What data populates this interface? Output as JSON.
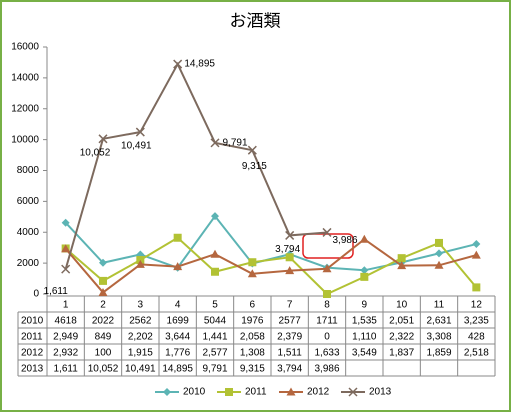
{
  "chart_data": {
    "type": "line",
    "title": "お酒類",
    "categories": [
      "1",
      "2",
      "3",
      "4",
      "5",
      "6",
      "7",
      "8",
      "9",
      "10",
      "11",
      "12"
    ],
    "ylim": [
      0,
      16000
    ],
    "yticks": [
      0,
      2000,
      4000,
      6000,
      8000,
      10000,
      12000,
      14000,
      16000
    ],
    "series": [
      {
        "name": "2010",
        "color": "#5cb4b4",
        "marker": "diamond",
        "values": [
          4618,
          2022,
          2562,
          1699,
          5044,
          1976,
          2577,
          1711,
          1535,
          2051,
          2631,
          3235
        ],
        "value_labels": [
          "4618",
          "2022",
          "2562",
          "1699",
          "5044",
          "1976",
          "2577",
          "1711",
          "1,535",
          "2,051",
          "2,631",
          "3,235"
        ]
      },
      {
        "name": "2011",
        "color": "#b2c234",
        "marker": "square",
        "values": [
          2949,
          849,
          2202,
          3644,
          1441,
          2058,
          2379,
          0,
          1110,
          2322,
          3308,
          428
        ],
        "value_labels": [
          "2,949",
          "849",
          "2,202",
          "3,644",
          "1,441",
          "2,058",
          "2,379",
          "0",
          "1,110",
          "2,322",
          "3,308",
          "428"
        ]
      },
      {
        "name": "2012",
        "color": "#b5673f",
        "marker": "triangle",
        "values": [
          2932,
          100,
          1915,
          1776,
          2577,
          1308,
          1511,
          1633,
          3549,
          1837,
          1859,
          2518
        ],
        "value_labels": [
          "2,932",
          "100",
          "1,915",
          "1,776",
          "2,577",
          "1,308",
          "1,511",
          "1,633",
          "3,549",
          "1,837",
          "1,859",
          "2,518"
        ]
      },
      {
        "name": "2013",
        "color": "#7d6a5e",
        "marker": "x",
        "data_labels": true,
        "values": [
          1611,
          10052,
          10491,
          14895,
          9791,
          9315,
          3794,
          3986,
          null,
          null,
          null,
          null
        ],
        "value_labels": [
          "1,611",
          "10,052",
          "10,491",
          "14,895",
          "9,791",
          "9,315",
          "3,794",
          "3,986",
          null,
          null,
          null,
          null
        ]
      }
    ]
  }
}
